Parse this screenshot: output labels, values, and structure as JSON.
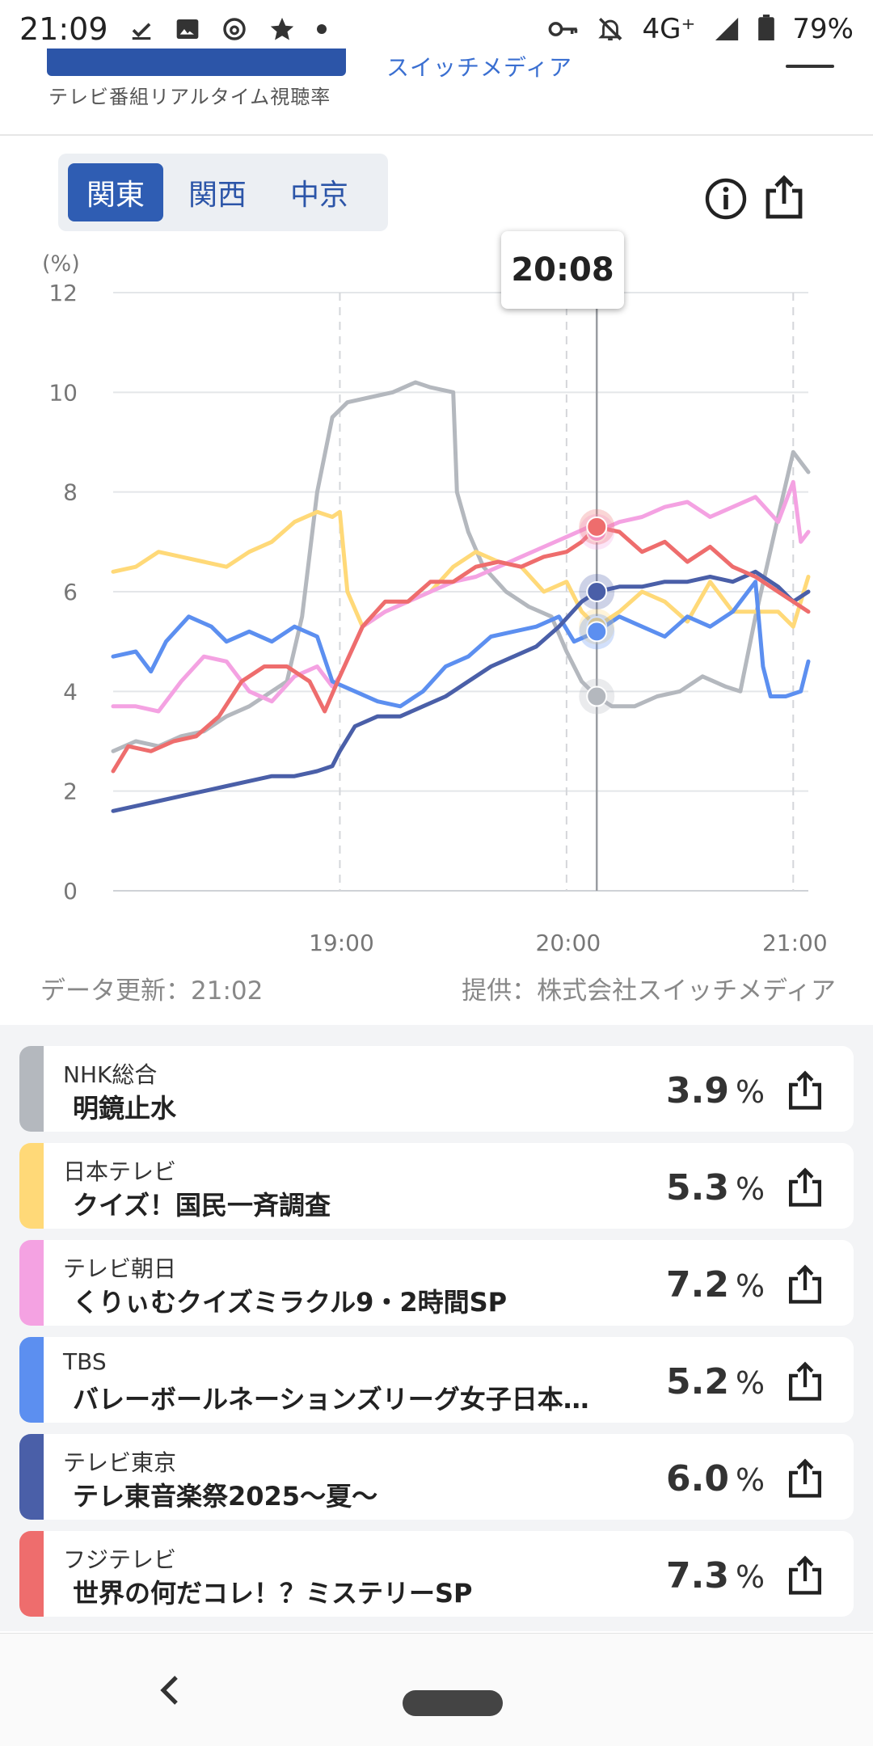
{
  "status_bar": {
    "time": "21:09",
    "network": "4G⁺",
    "battery": "79%",
    "icons": [
      "download-done-icon",
      "image-icon",
      "threads-icon",
      "star-icon",
      "dot-icon",
      "key-icon",
      "notifications-off-icon",
      "signal-icon",
      "battery-icon"
    ]
  },
  "header": {
    "subtitle": "テレビ番組リアルタイム視聴率",
    "brand": "スイッチメディア",
    "logo_color": "#2c55a8"
  },
  "region_tabs": [
    {
      "label": "関東",
      "active": true
    },
    {
      "label": "関西",
      "active": false
    },
    {
      "label": "中京",
      "active": false
    }
  ],
  "tooltip": {
    "time": "20:08"
  },
  "footer": {
    "updated": "データ更新：21:02",
    "provider": "提供：株式会社スイッチメディア"
  },
  "chart_data": {
    "type": "line",
    "ylabel": "(%)",
    "ylim": [
      0,
      12
    ],
    "yticks": [
      "0",
      "2",
      "4",
      "6",
      "8",
      "10",
      "12"
    ],
    "x_range": [
      "18:00",
      "21:04"
    ],
    "xticks": [
      "19:00",
      "20:00",
      "21:00"
    ],
    "grid": true,
    "cursor_x": "20:08",
    "series": [
      {
        "name": "NHK総合",
        "color": "#b4b8be",
        "points": [
          [
            "18:00",
            2.8
          ],
          [
            "18:06",
            3.0
          ],
          [
            "18:12",
            2.9
          ],
          [
            "18:18",
            3.1
          ],
          [
            "18:24",
            3.2
          ],
          [
            "18:30",
            3.5
          ],
          [
            "18:36",
            3.7
          ],
          [
            "18:42",
            4.0
          ],
          [
            "18:46",
            4.2
          ],
          [
            "18:50",
            5.5
          ],
          [
            "18:54",
            8.0
          ],
          [
            "18:58",
            9.5
          ],
          [
            "19:02",
            9.8
          ],
          [
            "19:08",
            9.9
          ],
          [
            "19:14",
            10.0
          ],
          [
            "19:20",
            10.2
          ],
          [
            "19:24",
            10.1
          ],
          [
            "19:30",
            10.0
          ],
          [
            "19:31",
            8.0
          ],
          [
            "19:34",
            7.2
          ],
          [
            "19:38",
            6.5
          ],
          [
            "19:44",
            6.0
          ],
          [
            "19:50",
            5.7
          ],
          [
            "19:56",
            5.5
          ],
          [
            "20:00",
            4.8
          ],
          [
            "20:04",
            4.2
          ],
          [
            "20:08",
            3.9
          ],
          [
            "20:12",
            3.7
          ],
          [
            "20:18",
            3.7
          ],
          [
            "20:24",
            3.9
          ],
          [
            "20:30",
            4.0
          ],
          [
            "20:36",
            4.3
          ],
          [
            "20:42",
            4.1
          ],
          [
            "20:46",
            4.0
          ],
          [
            "20:50",
            5.5
          ],
          [
            "20:56",
            7.5
          ],
          [
            "21:00",
            8.8
          ],
          [
            "21:02",
            8.6
          ],
          [
            "21:04",
            8.4
          ]
        ]
      },
      {
        "name": "日本テレビ",
        "color": "#ffd978",
        "points": [
          [
            "18:00",
            6.4
          ],
          [
            "18:06",
            6.5
          ],
          [
            "18:12",
            6.8
          ],
          [
            "18:18",
            6.7
          ],
          [
            "18:24",
            6.6
          ],
          [
            "18:30",
            6.5
          ],
          [
            "18:36",
            6.8
          ],
          [
            "18:42",
            7.0
          ],
          [
            "18:48",
            7.4
          ],
          [
            "18:54",
            7.6
          ],
          [
            "18:58",
            7.5
          ],
          [
            "19:00",
            7.6
          ],
          [
            "19:02",
            6.0
          ],
          [
            "19:06",
            5.3
          ],
          [
            "19:12",
            5.6
          ],
          [
            "19:18",
            5.8
          ],
          [
            "19:24",
            6.0
          ],
          [
            "19:30",
            6.5
          ],
          [
            "19:36",
            6.8
          ],
          [
            "19:42",
            6.6
          ],
          [
            "19:48",
            6.5
          ],
          [
            "19:54",
            6.0
          ],
          [
            "20:00",
            6.2
          ],
          [
            "20:04",
            5.6
          ],
          [
            "20:08",
            5.3
          ],
          [
            "20:14",
            5.6
          ],
          [
            "20:20",
            6.0
          ],
          [
            "20:26",
            5.8
          ],
          [
            "20:32",
            5.4
          ],
          [
            "20:38",
            6.2
          ],
          [
            "20:44",
            5.6
          ],
          [
            "20:50",
            5.6
          ],
          [
            "20:56",
            5.6
          ],
          [
            "21:00",
            5.3
          ],
          [
            "21:04",
            6.3
          ]
        ]
      },
      {
        "name": "テレビ朝日",
        "color": "#f4a2e2",
        "points": [
          [
            "18:00",
            3.7
          ],
          [
            "18:06",
            3.7
          ],
          [
            "18:12",
            3.6
          ],
          [
            "18:18",
            4.2
          ],
          [
            "18:24",
            4.7
          ],
          [
            "18:30",
            4.6
          ],
          [
            "18:36",
            4.0
          ],
          [
            "18:42",
            3.8
          ],
          [
            "18:48",
            4.3
          ],
          [
            "18:54",
            4.5
          ],
          [
            "18:58",
            4.1
          ],
          [
            "19:00",
            4.3
          ],
          [
            "19:06",
            5.3
          ],
          [
            "19:12",
            5.6
          ],
          [
            "19:18",
            5.8
          ],
          [
            "19:24",
            6.0
          ],
          [
            "19:30",
            6.2
          ],
          [
            "19:36",
            6.3
          ],
          [
            "19:42",
            6.5
          ],
          [
            "19:48",
            6.7
          ],
          [
            "19:54",
            6.9
          ],
          [
            "20:00",
            7.1
          ],
          [
            "20:06",
            7.3
          ],
          [
            "20:08",
            7.2
          ],
          [
            "20:14",
            7.4
          ],
          [
            "20:20",
            7.5
          ],
          [
            "20:26",
            7.7
          ],
          [
            "20:32",
            7.8
          ],
          [
            "20:38",
            7.5
          ],
          [
            "20:44",
            7.7
          ],
          [
            "20:50",
            7.9
          ],
          [
            "20:56",
            7.4
          ],
          [
            "21:00",
            8.2
          ],
          [
            "21:02",
            7.0
          ],
          [
            "21:04",
            7.2
          ]
        ]
      },
      {
        "name": "TBS",
        "color": "#5c8ff0",
        "points": [
          [
            "18:00",
            4.7
          ],
          [
            "18:06",
            4.8
          ],
          [
            "18:10",
            4.4
          ],
          [
            "18:14",
            5.0
          ],
          [
            "18:20",
            5.5
          ],
          [
            "18:26",
            5.3
          ],
          [
            "18:30",
            5.0
          ],
          [
            "18:36",
            5.2
          ],
          [
            "18:42",
            5.0
          ],
          [
            "18:48",
            5.3
          ],
          [
            "18:54",
            5.1
          ],
          [
            "18:58",
            4.2
          ],
          [
            "19:04",
            4.0
          ],
          [
            "19:10",
            3.8
          ],
          [
            "19:16",
            3.7
          ],
          [
            "19:22",
            4.0
          ],
          [
            "19:28",
            4.5
          ],
          [
            "19:34",
            4.7
          ],
          [
            "19:40",
            5.1
          ],
          [
            "19:46",
            5.2
          ],
          [
            "19:52",
            5.3
          ],
          [
            "19:58",
            5.5
          ],
          [
            "20:02",
            5.0
          ],
          [
            "20:08",
            5.2
          ],
          [
            "20:14",
            5.5
          ],
          [
            "20:20",
            5.3
          ],
          [
            "20:26",
            5.1
          ],
          [
            "20:32",
            5.5
          ],
          [
            "20:38",
            5.3
          ],
          [
            "20:44",
            5.6
          ],
          [
            "20:50",
            6.2
          ],
          [
            "20:52",
            4.5
          ],
          [
            "20:54",
            3.9
          ],
          [
            "20:58",
            3.9
          ],
          [
            "21:02",
            4.0
          ],
          [
            "21:04",
            4.6
          ]
        ]
      },
      {
        "name": "テレビ東京",
        "color": "#4a5fa8",
        "points": [
          [
            "18:00",
            1.6
          ],
          [
            "18:06",
            1.7
          ],
          [
            "18:12",
            1.8
          ],
          [
            "18:18",
            1.9
          ],
          [
            "18:24",
            2.0
          ],
          [
            "18:30",
            2.1
          ],
          [
            "18:36",
            2.2
          ],
          [
            "18:42",
            2.3
          ],
          [
            "18:48",
            2.3
          ],
          [
            "18:54",
            2.4
          ],
          [
            "18:58",
            2.5
          ],
          [
            "19:00",
            2.8
          ],
          [
            "19:04",
            3.3
          ],
          [
            "19:10",
            3.5
          ],
          [
            "19:16",
            3.5
          ],
          [
            "19:22",
            3.7
          ],
          [
            "19:28",
            3.9
          ],
          [
            "19:34",
            4.2
          ],
          [
            "19:40",
            4.5
          ],
          [
            "19:46",
            4.7
          ],
          [
            "19:52",
            4.9
          ],
          [
            "19:58",
            5.3
          ],
          [
            "20:04",
            5.8
          ],
          [
            "20:08",
            6.0
          ],
          [
            "20:14",
            6.1
          ],
          [
            "20:20",
            6.1
          ],
          [
            "20:26",
            6.2
          ],
          [
            "20:32",
            6.2
          ],
          [
            "20:38",
            6.3
          ],
          [
            "20:44",
            6.2
          ],
          [
            "20:50",
            6.4
          ],
          [
            "20:56",
            6.1
          ],
          [
            "21:00",
            5.8
          ],
          [
            "21:04",
            6.0
          ]
        ]
      },
      {
        "name": "フジテレビ",
        "color": "#ee6d6d",
        "points": [
          [
            "18:00",
            2.4
          ],
          [
            "18:04",
            2.9
          ],
          [
            "18:10",
            2.8
          ],
          [
            "18:16",
            3.0
          ],
          [
            "18:22",
            3.1
          ],
          [
            "18:28",
            3.5
          ],
          [
            "18:34",
            4.2
          ],
          [
            "18:40",
            4.5
          ],
          [
            "18:46",
            4.5
          ],
          [
            "18:52",
            4.2
          ],
          [
            "18:56",
            3.6
          ],
          [
            "19:00",
            4.3
          ],
          [
            "19:06",
            5.3
          ],
          [
            "19:12",
            5.8
          ],
          [
            "19:18",
            5.8
          ],
          [
            "19:24",
            6.2
          ],
          [
            "19:30",
            6.2
          ],
          [
            "19:36",
            6.5
          ],
          [
            "19:42",
            6.6
          ],
          [
            "19:48",
            6.5
          ],
          [
            "19:54",
            6.7
          ],
          [
            "20:00",
            6.8
          ],
          [
            "20:04",
            7.0
          ],
          [
            "20:08",
            7.3
          ],
          [
            "20:14",
            7.2
          ],
          [
            "20:20",
            6.8
          ],
          [
            "20:26",
            7.0
          ],
          [
            "20:32",
            6.6
          ],
          [
            "20:38",
            6.9
          ],
          [
            "20:44",
            6.5
          ],
          [
            "20:50",
            6.3
          ],
          [
            "20:56",
            6.0
          ],
          [
            "21:00",
            5.8
          ],
          [
            "21:04",
            5.6
          ]
        ]
      }
    ]
  },
  "channels": [
    {
      "channel": "NHK総合",
      "program": "明鏡止水",
      "rating": "3.9",
      "unit": "%",
      "color": "#b4b8be"
    },
    {
      "channel": "日本テレビ",
      "program": "クイズ！国民一斉調査",
      "rating": "5.3",
      "unit": "%",
      "color": "#ffd978"
    },
    {
      "channel": "テレビ朝日",
      "program": "くりぃむクイズミラクル9・2時間SP",
      "rating": "7.2",
      "unit": "%",
      "color": "#f4a2e2"
    },
    {
      "channel": "TBS",
      "program": "バレーボールネーションズリーグ女子日本…",
      "rating": "5.2",
      "unit": "%",
      "color": "#5c8ff0"
    },
    {
      "channel": "テレビ東京",
      "program": "テレ東音楽祭2025〜夏〜",
      "rating": "6.0",
      "unit": "%",
      "color": "#4a5fa8"
    },
    {
      "channel": "フジテレビ",
      "program": "世界の何だコレ！？ミステリーSP",
      "rating": "7.3",
      "unit": "%",
      "color": "#ee6d6d"
    }
  ],
  "nav": {
    "back_icon": "chevron-left-icon",
    "home": "home-pill"
  }
}
